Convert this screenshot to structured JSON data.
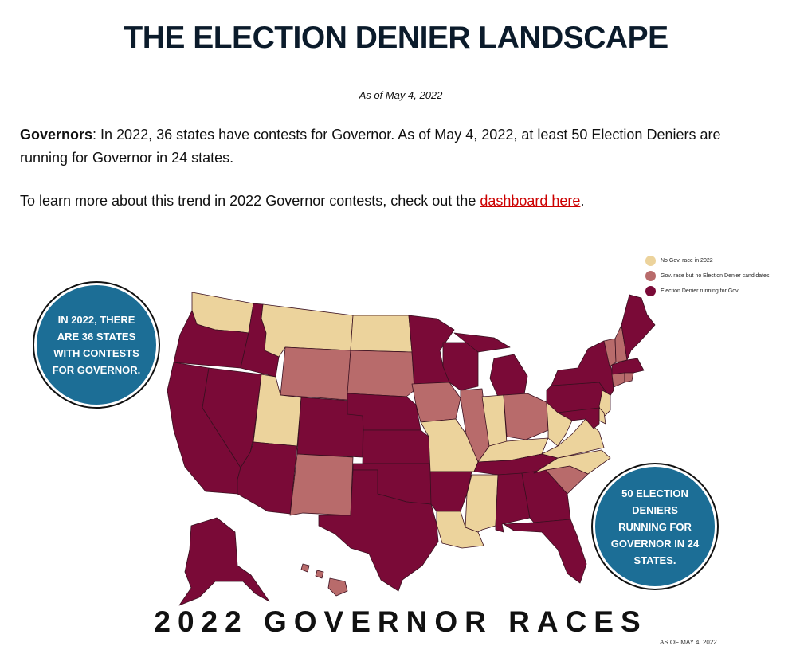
{
  "title": "THE ELECTION DENIER LANDSCAPE",
  "as_of": "As of May 4, 2022",
  "para1": {
    "lead": "Governors",
    "text": ": In 2022, 36 states have contests for Governor. As of May 4, 2022, at least 50 Election Deniers are running for Governor in 24 states."
  },
  "para2": {
    "before": "To learn more about this trend in 2022 Governor contests, check out the ",
    "link": "dashboard here",
    "after": "."
  },
  "map": {
    "colors": {
      "no_race": "#ecd39c",
      "race_no_denier": "#b86b6b",
      "denier": "#7a0a37",
      "circle": "#1c6e96"
    },
    "legend": [
      {
        "label": "No Gov. race in 2022",
        "color": "#ecd39c"
      },
      {
        "label": "Gov. race but no Election Denier candidates",
        "color": "#b86b6b"
      },
      {
        "label": "Election Denier running for Gov.",
        "color": "#7a0a37"
      }
    ],
    "callout_left": "IN 2022, THERE ARE 36 STATES WITH CONTESTS FOR GOVERNOR.",
    "callout_right": "50 ELECTION DENIERS RUNNING FOR GOVERNOR IN 24 STATES.",
    "bottom_title": "2022 GOVERNOR RACES",
    "footnote": "AS OF MAY 4, 2022",
    "states": {
      "WA": "no_race",
      "OR": "denier",
      "CA": "denier",
      "ID": "denier",
      "NV": "denier",
      "MT": "no_race",
      "WY": "race_no_denier",
      "UT": "no_race",
      "AZ": "denier",
      "CO": "denier",
      "NM": "race_no_denier",
      "ND": "no_race",
      "SD": "race_no_denier",
      "NE": "denier",
      "KS": "denier",
      "OK": "denier",
      "TX": "denier",
      "MN": "denier",
      "IA": "race_no_denier",
      "MO": "no_race",
      "AR": "denier",
      "LA": "no_race",
      "WI": "denier",
      "IL": "race_no_denier",
      "MI": "denier",
      "IN": "no_race",
      "OH": "race_no_denier",
      "KY": "no_race",
      "TN": "denier",
      "MS": "no_race",
      "AL": "denier",
      "GA": "denier",
      "FL": "denier",
      "SC": "race_no_denier",
      "NC": "no_race",
      "VA": "no_race",
      "WV": "no_race",
      "PA": "denier",
      "NY": "denier",
      "VT": "race_no_denier",
      "NH": "race_no_denier",
      "ME": "denier",
      "MA": "denier",
      "CT": "race_no_denier",
      "RI": "race_no_denier",
      "NJ": "no_race",
      "DE": "no_race",
      "MD": "denier",
      "AK": "denier",
      "HI": "race_no_denier"
    }
  }
}
